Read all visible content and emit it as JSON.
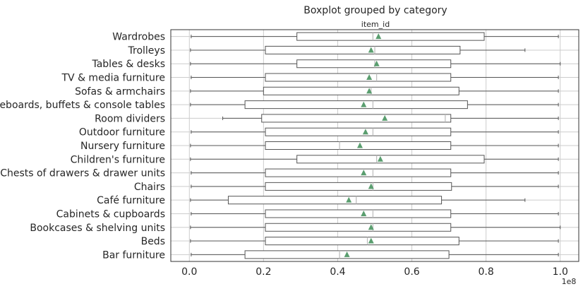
{
  "chart_data": {
    "type": "boxplot",
    "title": "Boxplot grouped by category",
    "subtitle": "item_id",
    "x_exponent_label": "1e8",
    "xlim": [
      -0.05,
      1.05
    ],
    "x_ticks": [
      0.0,
      0.2,
      0.4,
      0.6,
      0.8,
      1.0
    ],
    "x_tick_labels": [
      "0.0",
      "0.2",
      "0.4",
      "0.6",
      "0.8",
      "1.0"
    ],
    "grid": true,
    "colors": {
      "box": "#555555",
      "median": "#bbbbbb",
      "mean": "#5a9e6f",
      "grid": "#cccccc",
      "frame": "#333333"
    },
    "categories": [
      "Wardrobes",
      "Trolleys",
      "Tables & desks",
      "TV & media furniture",
      "Sofas & armchairs",
      "Sideboards, buffets & console tables",
      "Room dividers",
      "Outdoor furniture",
      "Nursery furniture",
      "Children's furniture",
      "Chests of drawers & drawer units",
      "Chairs",
      "Café furniture",
      "Cabinets & cupboards",
      "Bookcases & shelving units",
      "Beds",
      "Bar furniture"
    ],
    "series": [
      {
        "whisker_low": 0.005,
        "q1": 0.29,
        "median": 0.495,
        "q3": 0.795,
        "whisker_high": 0.995,
        "mean": 0.51
      },
      {
        "whisker_low": 0.003,
        "q1": 0.205,
        "median": 0.5,
        "q3": 0.73,
        "whisker_high": 0.905,
        "mean": 0.49
      },
      {
        "whisker_low": 0.003,
        "q1": 0.29,
        "median": 0.5,
        "q3": 0.705,
        "whisker_high": 1.0,
        "mean": 0.505
      },
      {
        "whisker_low": 0.005,
        "q1": 0.205,
        "median": 0.505,
        "q3": 0.705,
        "whisker_high": 0.995,
        "mean": 0.485
      },
      {
        "whisker_low": 0.003,
        "q1": 0.2,
        "median": 0.49,
        "q3": 0.727,
        "whisker_high": 0.995,
        "mean": 0.485
      },
      {
        "whisker_low": 0.003,
        "q1": 0.15,
        "median": 0.495,
        "q3": 0.75,
        "whisker_high": 0.995,
        "mean": 0.47
      },
      {
        "whisker_low": 0.09,
        "q1": 0.195,
        "median": 0.69,
        "q3": 0.705,
        "whisker_high": 0.995,
        "mean": 0.527
      },
      {
        "whisker_low": 0.005,
        "q1": 0.205,
        "median": 0.495,
        "q3": 0.705,
        "whisker_high": 0.995,
        "mean": 0.475
      },
      {
        "whisker_low": 0.003,
        "q1": 0.205,
        "median": 0.405,
        "q3": 0.705,
        "whisker_high": 0.995,
        "mean": 0.46
      },
      {
        "whisker_low": 0.003,
        "q1": 0.29,
        "median": 0.505,
        "q3": 0.795,
        "whisker_high": 0.995,
        "mean": 0.515
      },
      {
        "whisker_low": 0.005,
        "q1": 0.205,
        "median": 0.495,
        "q3": 0.705,
        "whisker_high": 0.995,
        "mean": 0.47
      },
      {
        "whisker_low": 0.005,
        "q1": 0.205,
        "median": 0.495,
        "q3": 0.707,
        "whisker_high": 0.995,
        "mean": 0.49
      },
      {
        "whisker_low": 0.003,
        "q1": 0.105,
        "median": 0.45,
        "q3": 0.68,
        "whisker_high": 0.905,
        "mean": 0.43
      },
      {
        "whisker_low": 0.005,
        "q1": 0.205,
        "median": 0.495,
        "q3": 0.705,
        "whisker_high": 0.995,
        "mean": 0.47
      },
      {
        "whisker_low": 0.003,
        "q1": 0.205,
        "median": 0.495,
        "q3": 0.705,
        "whisker_high": 1.0,
        "mean": 0.49
      },
      {
        "whisker_low": 0.003,
        "q1": 0.205,
        "median": 0.48,
        "q3": 0.727,
        "whisker_high": 0.995,
        "mean": 0.49
      },
      {
        "whisker_low": 0.005,
        "q1": 0.15,
        "median": 0.405,
        "q3": 0.7,
        "whisker_high": 0.995,
        "mean": 0.425
      }
    ]
  }
}
